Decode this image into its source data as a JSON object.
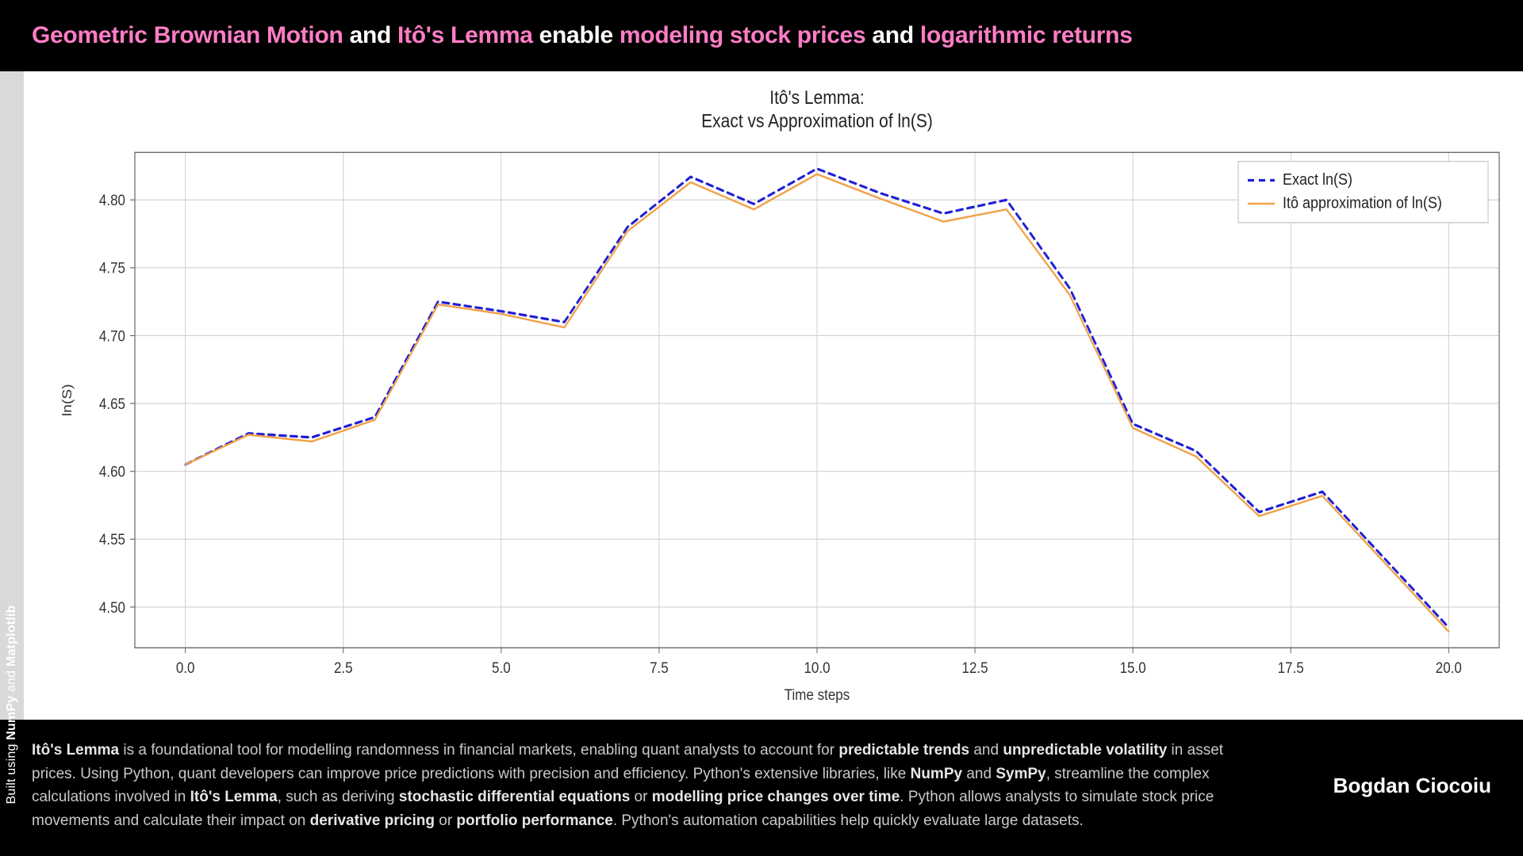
{
  "header": {
    "parts": [
      {
        "text": "Geometric Brownian Motion",
        "pink": true
      },
      {
        "text": " and ",
        "pink": false
      },
      {
        "text": "Itô's Lemma",
        "pink": true
      },
      {
        "text": " enable ",
        "pink": false
      },
      {
        "text": "modeling stock prices",
        "pink": true
      },
      {
        "text": " and ",
        "pink": false
      },
      {
        "text": "logarithmic returns",
        "pink": true
      }
    ]
  },
  "side_label_parts": [
    {
      "text": "Built using ",
      "bold": false
    },
    {
      "text": "NumPy",
      "bold": true
    },
    {
      "text": " and ",
      "bold": false
    },
    {
      "text": "Matplotlib",
      "bold": true
    }
  ],
  "chart": {
    "type": "line",
    "title_line1": "Itô's Lemma:",
    "title_line2": "Exact vs Approximation of ln(S)",
    "xlabel": "Time steps",
    "ylabel": "ln(S)",
    "xlim": [
      -0.8,
      20.8
    ],
    "ylim": [
      4.47,
      4.835
    ],
    "xticks": [
      0.0,
      2.5,
      5.0,
      7.5,
      10.0,
      12.5,
      15.0,
      17.5,
      20.0
    ],
    "xtick_labels": [
      "0.0",
      "2.5",
      "5.0",
      "7.5",
      "10.0",
      "12.5",
      "15.0",
      "17.5",
      "20.0"
    ],
    "yticks": [
      4.5,
      4.55,
      4.6,
      4.65,
      4.7,
      4.75,
      4.8
    ],
    "ytick_labels": [
      "4.50",
      "4.55",
      "4.60",
      "4.65",
      "4.70",
      "4.75",
      "4.80"
    ],
    "grid_color": "#cfcfcf",
    "axis_border_color": "#666666",
    "background_color": "#ffffff",
    "series": [
      {
        "name": "Exact ln(S)",
        "color": "#1f1fd6",
        "dash": "8,6",
        "width": 2.8,
        "x": [
          0,
          1,
          2,
          3,
          4,
          5,
          6,
          7,
          8,
          9,
          10,
          11,
          12,
          13,
          14,
          15,
          16,
          17,
          18,
          19,
          20
        ],
        "y": [
          4.605,
          4.628,
          4.625,
          4.64,
          4.725,
          4.718,
          4.71,
          4.78,
          4.817,
          4.797,
          4.823,
          4.805,
          4.79,
          4.8,
          4.735,
          4.635,
          4.615,
          4.57,
          4.585,
          4.535,
          4.485
        ]
      },
      {
        "name": "Itô approximation of ln(S)",
        "color": "#f0a24a",
        "dash": "",
        "width": 2.2,
        "x": [
          0,
          1,
          2,
          3,
          4,
          5,
          6,
          7,
          8,
          9,
          10,
          11,
          12,
          13,
          14,
          15,
          16,
          17,
          18,
          19,
          20
        ],
        "y": [
          4.605,
          4.627,
          4.622,
          4.638,
          4.723,
          4.716,
          4.706,
          4.777,
          4.813,
          4.793,
          4.819,
          4.801,
          4.784,
          4.793,
          4.73,
          4.632,
          4.611,
          4.567,
          4.582,
          4.532,
          4.482
        ]
      }
    ],
    "legend": {
      "border_color": "#bfbfbf",
      "bg_color": "#ffffff"
    }
  },
  "footer": {
    "author": "Bogdan Ciocoiu",
    "body_parts": [
      {
        "text": "Itô's Lemma",
        "bold": true
      },
      {
        "text": " is a foundational tool for modelling randomness in financial markets, enabling quant analysts to account for ",
        "bold": false
      },
      {
        "text": "predictable trends",
        "bold": true
      },
      {
        "text": " and ",
        "bold": false
      },
      {
        "text": "unpredictable volatility",
        "bold": true
      },
      {
        "text": " in asset prices. Using Python, quant developers can improve price predictions with precision and efficiency. Python's extensive libraries, like ",
        "bold": false
      },
      {
        "text": "NumPy",
        "bold": true
      },
      {
        "text": " and ",
        "bold": false
      },
      {
        "text": "SymPy",
        "bold": true
      },
      {
        "text": ", streamline the complex calculations involved in ",
        "bold": false
      },
      {
        "text": "Itô's Lemma",
        "bold": true
      },
      {
        "text": ", such as deriving ",
        "bold": false
      },
      {
        "text": "stochastic differential equations",
        "bold": true
      },
      {
        "text": " or ",
        "bold": false
      },
      {
        "text": "modelling price changes over time",
        "bold": true
      },
      {
        "text": ". Python allows analysts to simulate stock price movements and calculate their impact on ",
        "bold": false
      },
      {
        "text": "derivative pricing",
        "bold": true
      },
      {
        "text": " or ",
        "bold": false
      },
      {
        "text": "portfolio performance",
        "bold": true
      },
      {
        "text": ". Python's automation capabilities help quickly evaluate large datasets.",
        "bold": false
      }
    ]
  }
}
